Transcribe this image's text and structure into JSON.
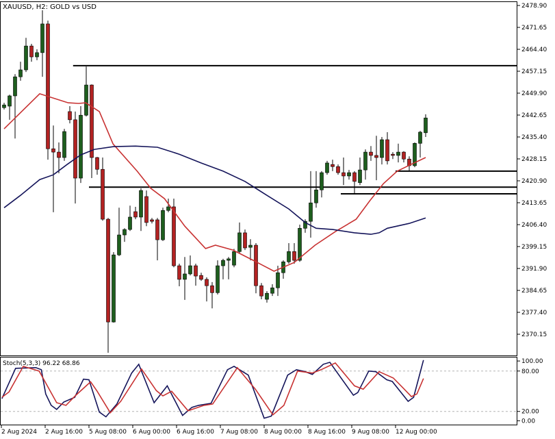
{
  "header": {
    "title": "XAUUSD, H2:  GOLD vs USD"
  },
  "colors": {
    "bull": "#1e5e1e",
    "bear": "#b22222",
    "ma_fast": "#c83232",
    "ma_slow": "#14145a",
    "stoch_main": "#14145a",
    "stoch_signal": "#c83232",
    "level_line": "#000000",
    "grid_dash": "#b4b4b4"
  },
  "chart_data": [
    {
      "type": "candlestick",
      "title": "XAUUSD, H2:  GOLD vs USD",
      "ylim": [
        2362.9,
        2480.7
      ],
      "grid": false,
      "y_ticks": [
        "2478.90",
        "2471.65",
        "2464.40",
        "2457.15",
        "2449.90",
        "2442.65",
        "2435.40",
        "2428.15",
        "2420.90",
        "2413.65",
        "2406.40",
        "2399.15",
        "2391.90",
        "2384.65",
        "2377.40",
        "2370.15"
      ],
      "x_ticks": [
        "2 Aug 2024",
        "2 Aug 16:00",
        "5 Aug 08:00",
        "6 Aug 00:00",
        "6 Aug 16:00",
        "7 Aug 08:00",
        "8 Aug 00:00",
        "8 Aug 16:00",
        "9 Aug 08:00",
        "12 Aug 00:00"
      ],
      "ohlc": [
        [
          2445.1,
          2446.7,
          2444.5,
          2446.0
        ],
        [
          2445.6,
          2449.4,
          2441.1,
          2449.0
        ],
        [
          2449.0,
          2456.2,
          2434.9,
          2455.3
        ],
        [
          2455.3,
          2460.3,
          2454.0,
          2457.6
        ],
        [
          2457.6,
          2468.2,
          2456.9,
          2465.5
        ],
        [
          2465.5,
          2466.2,
          2460.3,
          2461.9
        ],
        [
          2461.9,
          2464.4,
          2460.8,
          2463.3
        ],
        [
          2463.3,
          2477.3,
          2455.3,
          2472.8
        ],
        [
          2472.8,
          2473.9,
          2427.9,
          2431.5
        ],
        [
          2431.5,
          2439.2,
          2410.5,
          2430.4
        ],
        [
          2430.4,
          2433.6,
          2423.4,
          2428.6
        ],
        [
          2428.6,
          2438.1,
          2427.5,
          2437.2
        ],
        [
          2443.8,
          2445.6,
          2439.9,
          2441.1
        ],
        [
          2441.1,
          2443.8,
          2413.4,
          2421.8
        ],
        [
          2421.8,
          2445.6,
          2420.2,
          2442.6
        ],
        [
          2442.6,
          2458.7,
          2442.2,
          2452.6
        ],
        [
          2452.6,
          2452.8,
          2421.8,
          2428.6
        ],
        [
          2428.6,
          2428.8,
          2422.9,
          2424.7
        ],
        [
          2424.7,
          2428.6,
          2407.7,
          2408.2
        ],
        [
          2408.2,
          2408.6,
          2364.0,
          2374.2
        ],
        [
          2374.2,
          2397.3,
          2374.0,
          2396.4
        ],
        [
          2396.4,
          2412.0,
          2396.0,
          2403.0
        ],
        [
          2403.0,
          2405.2,
          2400.7,
          2404.8
        ],
        [
          2404.8,
          2412.7,
          2404.3,
          2408.9
        ],
        [
          2410.7,
          2412.3,
          2408.2,
          2408.9
        ],
        [
          2408.9,
          2418.4,
          2404.3,
          2417.7
        ],
        [
          2415.7,
          2417.7,
          2405.9,
          2407.1
        ],
        [
          2408.0,
          2408.6,
          2406.8,
          2407.5
        ],
        [
          2408.0,
          2408.6,
          2394.6,
          2401.4
        ],
        [
          2401.4,
          2412.0,
          2401.0,
          2411.1
        ],
        [
          2411.1,
          2415.0,
          2410.5,
          2412.3
        ],
        [
          2412.3,
          2415.0,
          2392.3,
          2392.8
        ],
        [
          2392.8,
          2393.5,
          2386.0,
          2388.3
        ],
        [
          2388.3,
          2395.7,
          2381.5,
          2390.1
        ],
        [
          2390.1,
          2396.2,
          2389.6,
          2392.8
        ],
        [
          2392.8,
          2393.5,
          2386.2,
          2389.4
        ],
        [
          2389.6,
          2390.5,
          2387.8,
          2388.3
        ],
        [
          2388.3,
          2389.0,
          2381.0,
          2386.2
        ],
        [
          2386.2,
          2387.4,
          2378.7,
          2383.9
        ],
        [
          2383.9,
          2394.6,
          2383.3,
          2392.8
        ],
        [
          2392.8,
          2395.1,
          2388.3,
          2394.6
        ],
        [
          2394.6,
          2395.7,
          2388.3,
          2395.1
        ],
        [
          2393.0,
          2398.4,
          2392.3,
          2397.5
        ],
        [
          2397.5,
          2407.1,
          2396.9,
          2403.7
        ],
        [
          2403.7,
          2404.8,
          2398.0,
          2398.7
        ],
        [
          2398.9,
          2401.6,
          2394.6,
          2399.6
        ],
        [
          2399.6,
          2400.3,
          2383.7,
          2386.2
        ],
        [
          2386.2,
          2387.1,
          2381.7,
          2382.8
        ],
        [
          2381.7,
          2384.4,
          2380.6,
          2383.7
        ],
        [
          2383.7,
          2386.7,
          2382.8,
          2385.5
        ],
        [
          2385.5,
          2392.8,
          2382.8,
          2390.5
        ],
        [
          2390.5,
          2394.6,
          2388.5,
          2394.1
        ],
        [
          2394.1,
          2400.3,
          2393.5,
          2397.5
        ],
        [
          2397.5,
          2400.3,
          2393.5,
          2394.6
        ],
        [
          2394.6,
          2406.4,
          2394.1,
          2405.2
        ],
        [
          2405.2,
          2408.2,
          2403.7,
          2407.5
        ],
        [
          2407.5,
          2424.1,
          2402.1,
          2413.6
        ],
        [
          2413.6,
          2424.1,
          2412.0,
          2417.9
        ],
        [
          2417.9,
          2424.1,
          2415.4,
          2423.6
        ],
        [
          2423.6,
          2427.5,
          2422.9,
          2426.8
        ],
        [
          2426.3,
          2427.9,
          2424.1,
          2425.6
        ],
        [
          2425.6,
          2426.3,
          2422.9,
          2423.6
        ],
        [
          2423.6,
          2428.6,
          2419.5,
          2422.5
        ],
        [
          2422.5,
          2424.5,
          2421.3,
          2423.6
        ],
        [
          2423.6,
          2424.1,
          2416.6,
          2420.7
        ],
        [
          2420.3,
          2428.6,
          2419.5,
          2424.5
        ],
        [
          2424.5,
          2431.3,
          2421.3,
          2430.4
        ],
        [
          2430.4,
          2432.4,
          2427.5,
          2429.3
        ],
        [
          2429.3,
          2435.8,
          2421.1,
          2428.6
        ],
        [
          2428.6,
          2435.4,
          2426.3,
          2434.5
        ],
        [
          2434.5,
          2437.0,
          2426.3,
          2427.5
        ],
        [
          2429.7,
          2430.4,
          2428.1,
          2429.3
        ],
        [
          2429.3,
          2433.2,
          2427.0,
          2430.4
        ],
        [
          2430.4,
          2430.7,
          2427.0,
          2428.1
        ],
        [
          2428.1,
          2429.0,
          2424.3,
          2425.9
        ],
        [
          2425.9,
          2433.6,
          2425.4,
          2433.3
        ],
        [
          2433.3,
          2437.4,
          2428.6,
          2437.0
        ],
        [
          2436.8,
          2442.9,
          2435.4,
          2441.7
        ]
      ],
      "ma_fast": [
        [
          0,
          2438.1
        ],
        [
          6.5,
          2449.7
        ],
        [
          11.7,
          2446.7
        ],
        [
          13.6,
          2446.5
        ],
        [
          14.9,
          2446.7
        ],
        [
          17.4,
          2443.8
        ],
        [
          19.9,
          2433.1
        ],
        [
          24.3,
          2424.1
        ],
        [
          26.8,
          2418.4
        ],
        [
          29.3,
          2415.0
        ],
        [
          33,
          2405.9
        ],
        [
          36.8,
          2398.5
        ],
        [
          38.6,
          2399.6
        ],
        [
          41.8,
          2398.0
        ],
        [
          45.5,
          2394.6
        ],
        [
          49.3,
          2391.0
        ],
        [
          53,
          2393.9
        ],
        [
          56.8,
          2399.6
        ],
        [
          60.5,
          2404.1
        ],
        [
          64.3,
          2408.2
        ],
        [
          66.8,
          2414.3
        ],
        [
          69.3,
          2420.0
        ],
        [
          71.8,
          2424.1
        ],
        [
          74.3,
          2426.3
        ],
        [
          77,
          2428.6
        ]
      ],
      "ma_slow": [
        [
          0,
          2412.0
        ],
        [
          3,
          2416.1
        ],
        [
          6.5,
          2421.3
        ],
        [
          9,
          2422.9
        ],
        [
          11.5,
          2426.3
        ],
        [
          14,
          2429.5
        ],
        [
          16.5,
          2431.3
        ],
        [
          20,
          2432.2
        ],
        [
          24,
          2432.4
        ],
        [
          28,
          2432.0
        ],
        [
          32,
          2429.7
        ],
        [
          36,
          2426.8
        ],
        [
          40,
          2424.1
        ],
        [
          44,
          2420.7
        ],
        [
          48,
          2416.1
        ],
        [
          52,
          2411.6
        ],
        [
          55,
          2407.1
        ],
        [
          57,
          2405.2
        ],
        [
          60,
          2404.8
        ],
        [
          64,
          2403.7
        ],
        [
          67,
          2403.2
        ],
        [
          68.5,
          2403.7
        ],
        [
          70,
          2405.2
        ],
        [
          74,
          2406.8
        ],
        [
          77,
          2408.6
        ]
      ],
      "levels": [
        {
          "price": 2459.0,
          "from_index": 12.6
        },
        {
          "price": 2418.8,
          "from_index": 15.5
        },
        {
          "price": 2424.1,
          "from_index": 71.5
        },
        {
          "price": 2416.6,
          "from_index": 61.5
        }
      ]
    },
    {
      "type": "line",
      "title": "Stoch(5,3,3) 96.22 68.86",
      "ylim": [
        0,
        100
      ],
      "y_ticks": [
        "100.00",
        "80.00",
        "20.00",
        "0.00"
      ],
      "levels": [
        80,
        20
      ],
      "main": [
        [
          -0.4,
          39
        ],
        [
          2.1,
          84
        ],
        [
          5.8,
          85
        ],
        [
          6.8,
          82
        ],
        [
          7.6,
          46
        ],
        [
          8.6,
          29
        ],
        [
          9.6,
          23
        ],
        [
          10.9,
          34
        ],
        [
          12.9,
          41
        ],
        [
          14.5,
          68
        ],
        [
          15.5,
          67
        ],
        [
          17.4,
          19
        ],
        [
          18.6,
          12
        ],
        [
          20.6,
          31
        ],
        [
          23.3,
          77
        ],
        [
          24.6,
          90
        ],
        [
          27.4,
          33
        ],
        [
          29.8,
          58
        ],
        [
          32.6,
          14
        ],
        [
          34.3,
          26
        ],
        [
          35.5,
          29
        ],
        [
          37.8,
          32
        ],
        [
          40.8,
          82
        ],
        [
          42,
          87
        ],
        [
          44.6,
          74
        ],
        [
          47.5,
          10
        ],
        [
          48.8,
          13
        ],
        [
          51.8,
          74
        ],
        [
          53.4,
          82
        ],
        [
          55,
          79
        ],
        [
          56.3,
          75
        ],
        [
          58.3,
          90
        ],
        [
          59.5,
          93
        ],
        [
          63.8,
          44
        ],
        [
          64.6,
          48
        ],
        [
          66.6,
          80
        ],
        [
          67.9,
          79
        ],
        [
          69.9,
          67
        ],
        [
          70.9,
          64.5
        ],
        [
          73.8,
          35
        ],
        [
          74.8,
          41
        ],
        [
          76.6,
          96.22
        ]
      ],
      "signal": [
        [
          -0.4,
          41
        ],
        [
          0.9,
          49
        ],
        [
          3.5,
          87
        ],
        [
          6.4,
          80
        ],
        [
          9.6,
          33
        ],
        [
          11.3,
          29
        ],
        [
          13.1,
          44
        ],
        [
          15.8,
          64
        ],
        [
          17,
          50
        ],
        [
          19.4,
          18
        ],
        [
          21.3,
          35
        ],
        [
          25.1,
          83
        ],
        [
          27.8,
          51
        ],
        [
          29,
          43
        ],
        [
          30.6,
          50
        ],
        [
          33.6,
          21
        ],
        [
          36.5,
          29
        ],
        [
          38.1,
          31
        ],
        [
          42.6,
          85
        ],
        [
          45.9,
          53
        ],
        [
          49.1,
          15
        ],
        [
          51.1,
          29
        ],
        [
          53.6,
          80
        ],
        [
          56.3,
          77
        ],
        [
          57.9,
          82
        ],
        [
          60.5,
          92
        ],
        [
          64,
          58
        ],
        [
          65.6,
          53
        ],
        [
          68.5,
          79
        ],
        [
          71.1,
          69.6
        ],
        [
          73.1,
          53
        ],
        [
          74.4,
          42
        ],
        [
          75.4,
          46
        ],
        [
          76.6,
          68.86
        ]
      ]
    }
  ]
}
